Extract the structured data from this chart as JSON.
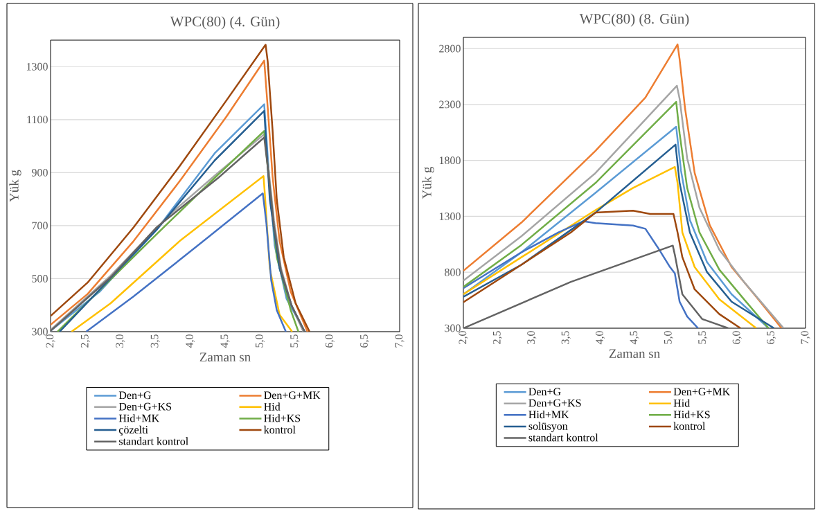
{
  "chart_data": [
    {
      "type": "line",
      "title": "WPC(80) (4. Gün)",
      "xlabel": "Zaman sn",
      "ylabel": "Yük g",
      "xlim": [
        2,
        7
      ],
      "ylim": [
        300,
        1400
      ],
      "xticks": [
        {
          "value": 2,
          "label": "2,0"
        },
        {
          "value": 2.5,
          "label": "2,5"
        },
        {
          "value": 3,
          "label": "3,0"
        },
        {
          "value": 3.5,
          "label": "3,5"
        },
        {
          "value": 4,
          "label": "4,0"
        },
        {
          "value": 4.5,
          "label": "4,5"
        },
        {
          "value": 5,
          "label": "5,0"
        },
        {
          "value": 5.5,
          "label": "5,5"
        },
        {
          "value": 6,
          "label": "6,0"
        },
        {
          "value": 6.5,
          "label": "6,5"
        },
        {
          "value": 7,
          "label": "7,0"
        }
      ],
      "yticks": [
        300,
        500,
        700,
        900,
        1100,
        1300
      ],
      "grid": "y",
      "legend": "bottom",
      "marker": "none",
      "line_style": "solid",
      "series": [
        {
          "name": "Den+G",
          "color": "#5b9bd5",
          "x": [
            2.0,
            2.7,
            3.52,
            4.35,
            5.06,
            5.13,
            5.21,
            5.38,
            5.64
          ],
          "values": [
            303,
            450,
            685,
            973,
            1158,
            885,
            625,
            424,
            300
          ]
        },
        {
          "name": "Den+G+MK",
          "color": "#ed7d31",
          "x": [
            2.0,
            2.53,
            3.19,
            3.85,
            4.52,
            5.06,
            5.11,
            5.18,
            5.28,
            5.44,
            5.68
          ],
          "values": [
            326,
            442,
            642,
            868,
            1112,
            1323,
            1146,
            885,
            642,
            450,
            300
          ]
        },
        {
          "name": "Den+G+KS",
          "color": "#a5a5a5",
          "x": [
            2.0,
            2.86,
            3.69,
            4.4,
            5.06,
            5.12,
            5.2,
            5.3,
            5.45,
            5.62
          ],
          "values": [
            307,
            511,
            738,
            900,
            1045,
            920,
            720,
            540,
            400,
            300
          ]
        },
        {
          "name": "Hid",
          "color": "#ffc000",
          "x": [
            2.3,
            2.86,
            3.85,
            5.05,
            5.07,
            5.14,
            5.28,
            5.46
          ],
          "values": [
            300,
            407,
            642,
            887,
            816,
            538,
            364,
            300
          ]
        },
        {
          "name": "Hid+MK",
          "color": "#4472c4",
          "x": [
            2.51,
            3.19,
            4.19,
            5.04,
            5.09,
            5.16,
            5.24,
            5.37
          ],
          "values": [
            300,
            433,
            642,
            822,
            712,
            494,
            381,
            300
          ]
        },
        {
          "name": "Hid+KS",
          "color": "#70ad47",
          "x": [
            2.1,
            3.52,
            4.35,
            5.06,
            5.14,
            5.24,
            5.44,
            5.55
          ],
          "values": [
            300,
            668,
            880,
            1057,
            842,
            581,
            381,
            300
          ]
        },
        {
          "name": "çözelti",
          "color": "#255e91",
          "x": [
            2.13,
            3.52,
            4.35,
            5.06,
            5.14,
            5.28,
            5.45,
            5.64
          ],
          "values": [
            300,
            685,
            946,
            1133,
            799,
            538,
            400,
            300
          ]
        },
        {
          "name": "kontrol",
          "color": "#9e480e",
          "x": [
            2.0,
            2.53,
            3.19,
            3.85,
            4.52,
            5.08,
            5.11,
            5.18,
            5.24,
            5.34,
            5.51,
            5.71
          ],
          "values": [
            359,
            485,
            694,
            925,
            1173,
            1383,
            1320,
            1060,
            799,
            581,
            407,
            300
          ]
        },
        {
          "name": "standart kontrol",
          "color": "#636363",
          "x": [
            2.0,
            2.86,
            3.52,
            4.4,
            5.06,
            5.12,
            5.2,
            5.3,
            5.45,
            5.64
          ],
          "values": [
            303,
            505,
            694,
            880,
            1033,
            900,
            700,
            530,
            400,
            300
          ]
        }
      ]
    },
    {
      "type": "line",
      "title": "WPC(80) (8. Gün)",
      "xlabel": "Zaman sn",
      "ylabel": "Yük g",
      "xlim": [
        2,
        7
      ],
      "ylim": [
        300,
        2900
      ],
      "xticks": [
        {
          "value": 2,
          "label": "2,0"
        },
        {
          "value": 2.5,
          "label": "2,5"
        },
        {
          "value": 3,
          "label": "3,0"
        },
        {
          "value": 3.5,
          "label": "3,5"
        },
        {
          "value": 4,
          "label": "4,0"
        },
        {
          "value": 4.5,
          "label": "4,5"
        },
        {
          "value": 5,
          "label": "5,0"
        },
        {
          "value": 5.5,
          "label": "5,5"
        },
        {
          "value": 6,
          "label": "6,0"
        },
        {
          "value": 6.5,
          "label": "6,5"
        },
        {
          "value": 7,
          "label": "7,0"
        }
      ],
      "yticks": [
        300,
        800,
        1300,
        1800,
        2300,
        2800
      ],
      "grid": "y",
      "legend": "bottom",
      "marker": "none",
      "line_style": "solid",
      "series": [
        {
          "name": "Den+G",
          "color": "#5b9bd5",
          "x": [
            2.0,
            2.85,
            3.93,
            5.11,
            5.18,
            5.31,
            5.56,
            5.92,
            6.46
          ],
          "values": [
            603,
            979,
            1510,
            2101,
            1709,
            1267,
            891,
            603,
            300
          ]
        },
        {
          "name": "Den+G+MK",
          "color": "#ed7d31",
          "x": [
            2.0,
            2.85,
            3.93,
            4.66,
            5.13,
            5.16,
            5.24,
            5.38,
            5.6,
            5.92,
            6.28,
            6.65
          ],
          "values": [
            813,
            1245,
            1886,
            2362,
            2837,
            2704,
            2262,
            1687,
            1222,
            846,
            581,
            300
          ]
        },
        {
          "name": "Den+G+KS",
          "color": "#a5a5a5",
          "x": [
            2.0,
            2.85,
            3.93,
            5.12,
            5.16,
            5.27,
            5.45,
            5.74,
            6.1,
            6.68
          ],
          "values": [
            725,
            1123,
            1687,
            2468,
            2351,
            1820,
            1377,
            1001,
            714,
            300
          ]
        },
        {
          "name": "Hid",
          "color": "#ffc000",
          "x": [
            2.0,
            2.85,
            3.93,
            4.48,
            5.09,
            5.13,
            5.2,
            5.38,
            5.74,
            6.28
          ],
          "values": [
            603,
            935,
            1355,
            1554,
            1742,
            1598,
            1156,
            846,
            559,
            300
          ]
        },
        {
          "name": "Hid+MK",
          "color": "#4472c4",
          "x": [
            2.0,
            2.85,
            3.39,
            3.75,
            3.93,
            4.48,
            4.66,
            4.84,
            5.02,
            5.09,
            5.16,
            5.27,
            5.43
          ],
          "values": [
            658,
            979,
            1156,
            1256,
            1240,
            1218,
            1189,
            1023,
            846,
            791,
            537,
            404,
            300
          ]
        },
        {
          "name": "Hid+KS",
          "color": "#70ad47",
          "x": [
            2.0,
            2.85,
            3.93,
            5.11,
            5.16,
            5.27,
            5.45,
            5.74,
            6.1,
            6.46
          ],
          "values": [
            669,
            1045,
            1598,
            2324,
            2041,
            1554,
            1156,
            824,
            559,
            300
          ]
        },
        {
          "name": "solüsyon",
          "color": "#255e91",
          "x": [
            2.0,
            2.85,
            3.93,
            5.1,
            5.16,
            5.31,
            5.56,
            5.92,
            6.54
          ],
          "values": [
            580,
            868,
            1333,
            1941,
            1598,
            1156,
            802,
            537,
            300
          ]
        },
        {
          "name": "kontrol",
          "color": "#9e480e",
          "x": [
            2.0,
            2.85,
            3.57,
            3.93,
            4.48,
            4.73,
            5.07,
            5.13,
            5.2,
            5.38,
            5.74,
            6.05
          ],
          "values": [
            532,
            868,
            1156,
            1333,
            1351,
            1322,
            1322,
            1156,
            935,
            647,
            426,
            300
          ]
        },
        {
          "name": "standart kontrol",
          "color": "#636363",
          "x": [
            2.0,
            3.57,
            5.06,
            5.09,
            5.2,
            5.49,
            5.87
          ],
          "values": [
            300,
            714,
            1039,
            957,
            603,
            382,
            300
          ]
        }
      ]
    }
  ]
}
